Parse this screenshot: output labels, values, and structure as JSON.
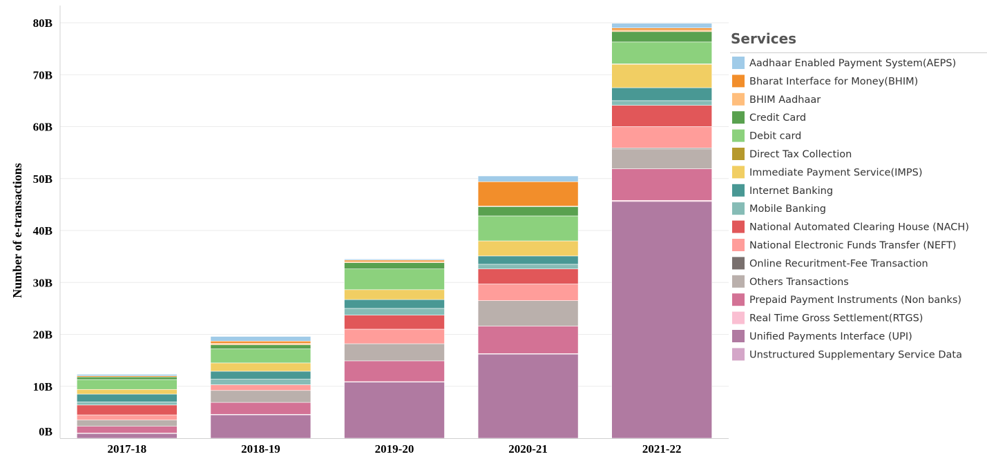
{
  "chart_data": {
    "type": "bar",
    "stacked": true,
    "title": "",
    "xlabel": "",
    "ylabel": "Number of e-transactions",
    "ylim": [
      0,
      80
    ],
    "y_unit_suffix": "B",
    "y_ticks": [
      "0B",
      "10B",
      "20B",
      "30B",
      "40B",
      "50B",
      "60B",
      "70B",
      "80B"
    ],
    "categories": [
      "2017-18",
      "2018-19",
      "2019-20",
      "2020-21",
      "2021-22"
    ],
    "legend_title": "Services",
    "legend_position": "right",
    "series": [
      {
        "name": "Unified Payments Interface (UPI)",
        "color": "#b07aa1",
        "values": [
          0.9,
          4.5,
          10.8,
          16.2,
          45.6
        ]
      },
      {
        "name": "Unstructured Supplementary Service Data",
        "color": "#d4a6c8",
        "values": [
          0,
          0,
          0,
          0,
          0
        ]
      },
      {
        "name": "Real Time Gross Settlement(RTGS)",
        "color": "#fabfd2",
        "values": [
          0.1,
          0.1,
          0.1,
          0.1,
          0.2
        ]
      },
      {
        "name": "Prepaid Payment Instruments (Non banks)",
        "color": "#d37295",
        "values": [
          1.3,
          2.3,
          4.0,
          5.3,
          6.1
        ]
      },
      {
        "name": "Others Transactions",
        "color": "#bab0ac",
        "values": [
          1.2,
          2.3,
          3.3,
          4.9,
          3.8
        ]
      },
      {
        "name": "Online Recuritment-Fee Transaction",
        "color": "#79706e",
        "values": [
          0,
          0,
          0,
          0,
          0.2
        ]
      },
      {
        "name": "National Electronic Funds Transfer (NEFT)",
        "color": "#ff9d9a",
        "values": [
          1.0,
          1.1,
          2.8,
          3.2,
          4.1
        ]
      },
      {
        "name": "National Automated Clearing House (NACH)",
        "color": "#e15759",
        "values": [
          1.9,
          0,
          2.7,
          2.9,
          4.1
        ]
      },
      {
        "name": "Mobile Banking",
        "color": "#86bcb6",
        "values": [
          0.6,
          1.1,
          1.3,
          0.9,
          0.9
        ]
      },
      {
        "name": "Internet Banking",
        "color": "#499894",
        "values": [
          1.5,
          1.5,
          1.7,
          1.6,
          2.5
        ]
      },
      {
        "name": "Immediate Payment Service(IMPS)",
        "color": "#f1ce63",
        "values": [
          0.9,
          1.6,
          1.9,
          2.9,
          4.5
        ]
      },
      {
        "name": "Direct Tax Collection",
        "color": "#b6992d",
        "values": [
          0,
          0,
          0,
          0,
          0.1
        ]
      },
      {
        "name": "Debit card",
        "color": "#8cd17d",
        "values": [
          1.9,
          2.7,
          4.0,
          4.8,
          4.2
        ]
      },
      {
        "name": "Credit Card",
        "color": "#59a14f",
        "values": [
          0.5,
          0.8,
          1.2,
          1.8,
          2.0
        ]
      },
      {
        "name": "BHIM Aadhaar",
        "color": "#ffbe7d",
        "values": [
          0,
          0.3,
          0.2,
          0.1,
          0.3
        ]
      },
      {
        "name": "Bharat Interface for Money(BHIM)",
        "color": "#f28e2b",
        "values": [
          0.2,
          0.4,
          0.3,
          4.7,
          0.4
        ]
      },
      {
        "name": "Aadhaar Enabled Payment System(AEPS)",
        "color": "#a0cbe8",
        "values": [
          0.3,
          0.9,
          0.2,
          1.1,
          0.9
        ]
      }
    ],
    "legend_order": [
      "Aadhaar Enabled Payment System(AEPS)",
      "Bharat Interface for Money(BHIM)",
      "BHIM Aadhaar",
      "Credit Card",
      "Debit card",
      "Direct Tax Collection",
      "Immediate Payment Service(IMPS)",
      "Internet Banking",
      "Mobile Banking",
      "National Automated Clearing House (NACH)",
      "National Electronic Funds Transfer (NEFT)",
      "Online Recuritment-Fee Transaction",
      "Others Transactions",
      "Prepaid Payment Instruments (Non banks)",
      "Real Time Gross Settlement(RTGS)",
      "Unified Payments Interface (UPI)",
      "Unstructured Supplementary Service Data"
    ]
  }
}
